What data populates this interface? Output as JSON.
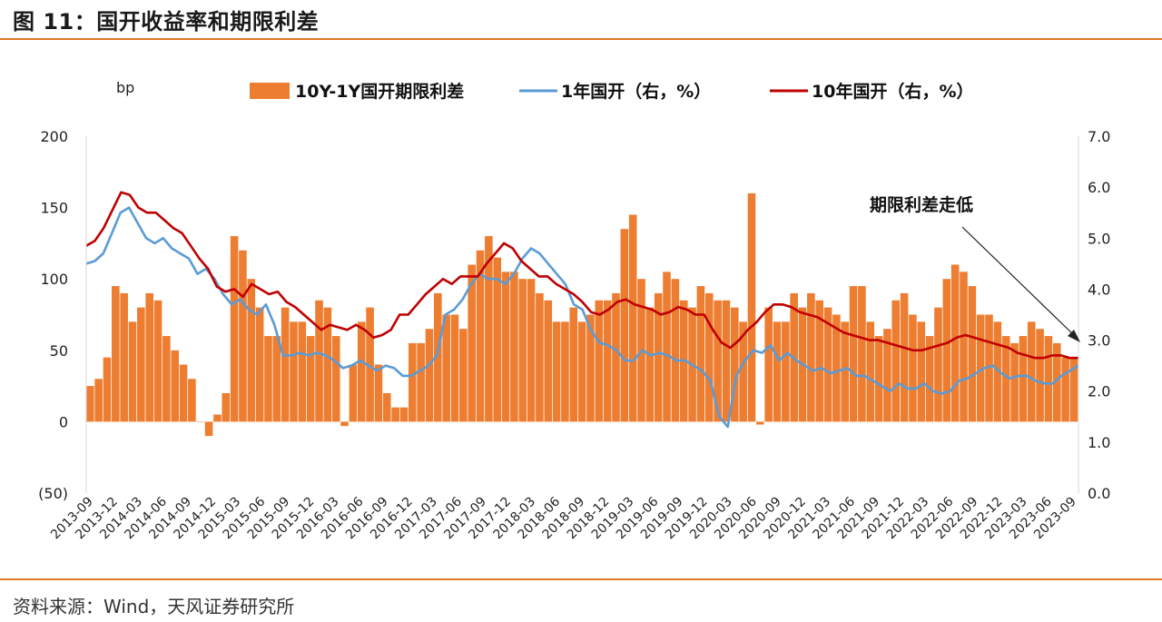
{
  "header": {
    "title": "图 11：国开收益率和期限利差"
  },
  "footer": {
    "source": "资料来源：Wind，天风证券研究所"
  },
  "chart_data": {
    "type": "bar+line",
    "left_axis_unit": "bp",
    "left_ylim": [
      -50,
      200
    ],
    "left_ticks": [
      "(50)",
      "0",
      "50",
      "100",
      "150",
      "200"
    ],
    "left_tick_values": [
      -50,
      0,
      50,
      100,
      150,
      200
    ],
    "right_ylim": [
      0.0,
      7.0
    ],
    "right_ticks": [
      "0.0",
      "1.0",
      "2.0",
      "3.0",
      "4.0",
      "5.0",
      "6.0",
      "7.0"
    ],
    "right_tick_values": [
      0,
      1,
      2,
      3,
      4,
      5,
      6,
      7
    ],
    "x_labels": [
      "2013-09",
      "2013-12",
      "2014-03",
      "2014-06",
      "2014-09",
      "2014-12",
      "2015-03",
      "2015-06",
      "2015-09",
      "2015-12",
      "2016-03",
      "2016-06",
      "2016-09",
      "2016-12",
      "2017-03",
      "2017-06",
      "2017-09",
      "2017-12",
      "2018-03",
      "2018-06",
      "2018-09",
      "2018-12",
      "2019-03",
      "2019-06",
      "2019-09",
      "2019-12",
      "2020-03",
      "2020-06",
      "2020-09",
      "2020-12",
      "2021-03",
      "2021-06",
      "2021-09",
      "2021-12",
      "2022-03",
      "2022-06",
      "2022-09",
      "2022-12",
      "2023-03",
      "2023-06",
      "2023-09"
    ],
    "annotation": "期限利差走低",
    "legend_position": "top",
    "series": [
      {
        "name": "10Y-1Y国开期限利差",
        "axis": "left",
        "kind": "bar",
        "color": "#ed7d31",
        "values": [
          25,
          30,
          45,
          95,
          90,
          70,
          80,
          90,
          85,
          60,
          50,
          40,
          30,
          0,
          -10,
          5,
          20,
          130,
          120,
          100,
          80,
          60,
          60,
          80,
          70,
          70,
          60,
          85,
          80,
          60,
          -3,
          40,
          70,
          80,
          40,
          20,
          10,
          10,
          55,
          55,
          65,
          90,
          75,
          75,
          65,
          110,
          120,
          130,
          115,
          105,
          105,
          100,
          100,
          90,
          85,
          70,
          70,
          80,
          70,
          75,
          85,
          85,
          90,
          135,
          145,
          100,
          80,
          90,
          105,
          100,
          85,
          80,
          95,
          90,
          85,
          85,
          80,
          70,
          160,
          -2,
          80,
          70,
          70,
          90,
          80,
          90,
          85,
          80,
          75,
          70,
          95,
          95,
          70,
          60,
          65,
          85,
          90,
          75,
          70,
          60,
          80,
          100,
          110,
          105,
          95,
          75,
          75,
          70,
          60,
          55,
          60,
          70,
          65,
          60,
          55,
          45,
          45
        ]
      },
      {
        "name": "1年国开（右，%）",
        "axis": "right",
        "kind": "line",
        "color": "#5b9bd5",
        "values": [
          4.5,
          4.55,
          4.7,
          5.1,
          5.5,
          5.6,
          5.3,
          5.0,
          4.9,
          5.0,
          4.8,
          4.7,
          4.6,
          4.3,
          4.4,
          4.2,
          3.9,
          3.7,
          3.8,
          3.6,
          3.5,
          3.7,
          3.3,
          2.7,
          2.7,
          2.75,
          2.7,
          2.75,
          2.7,
          2.6,
          2.45,
          2.5,
          2.6,
          2.5,
          2.4,
          2.5,
          2.45,
          2.3,
          2.3,
          2.4,
          2.5,
          2.7,
          3.5,
          3.6,
          3.8,
          4.1,
          4.3,
          4.2,
          4.2,
          4.1,
          4.3,
          4.6,
          4.8,
          4.7,
          4.5,
          4.3,
          4.1,
          3.7,
          3.6,
          3.2,
          2.95,
          2.9,
          2.8,
          2.6,
          2.6,
          2.8,
          2.7,
          2.75,
          2.7,
          2.6,
          2.6,
          2.5,
          2.4,
          2.2,
          1.5,
          1.3,
          2.3,
          2.6,
          2.8,
          2.75,
          2.9,
          2.6,
          2.75,
          2.6,
          2.5,
          2.4,
          2.45,
          2.35,
          2.4,
          2.45,
          2.3,
          2.3,
          2.2,
          2.1,
          2.0,
          2.15,
          2.05,
          2.05,
          2.15,
          2.0,
          1.95,
          2.0,
          2.2,
          2.25,
          2.35,
          2.45,
          2.5,
          2.35,
          2.25,
          2.3,
          2.3,
          2.2,
          2.15,
          2.15,
          2.3,
          2.4,
          2.5
        ]
      },
      {
        "name": "10年国开（右，%）",
        "axis": "right",
        "kind": "line",
        "color": "#c00000",
        "values": [
          4.85,
          4.95,
          5.2,
          5.55,
          5.9,
          5.85,
          5.6,
          5.5,
          5.5,
          5.35,
          5.2,
          5.1,
          4.85,
          4.6,
          4.4,
          4.05,
          3.95,
          4.0,
          3.85,
          4.1,
          4.0,
          3.9,
          3.95,
          3.75,
          3.65,
          3.5,
          3.35,
          3.2,
          3.3,
          3.25,
          3.2,
          3.3,
          3.2,
          3.05,
          3.1,
          3.2,
          3.5,
          3.5,
          3.7,
          3.9,
          4.05,
          4.2,
          4.1,
          4.25,
          4.25,
          4.25,
          4.5,
          4.7,
          4.9,
          4.8,
          4.55,
          4.4,
          4.25,
          4.25,
          4.1,
          4.0,
          3.9,
          3.75,
          3.55,
          3.5,
          3.6,
          3.75,
          3.8,
          3.7,
          3.65,
          3.6,
          3.5,
          3.55,
          3.65,
          3.6,
          3.5,
          3.5,
          3.2,
          2.95,
          2.85,
          3.0,
          3.2,
          3.35,
          3.55,
          3.7,
          3.7,
          3.65,
          3.55,
          3.5,
          3.45,
          3.35,
          3.25,
          3.15,
          3.1,
          3.05,
          3.0,
          3.0,
          2.95,
          2.9,
          2.85,
          2.8,
          2.8,
          2.85,
          2.9,
          2.95,
          3.05,
          3.1,
          3.05,
          3.0,
          2.95,
          2.9,
          2.85,
          2.75,
          2.7,
          2.65,
          2.65,
          2.7,
          2.7,
          2.65,
          2.65
        ]
      }
    ]
  }
}
